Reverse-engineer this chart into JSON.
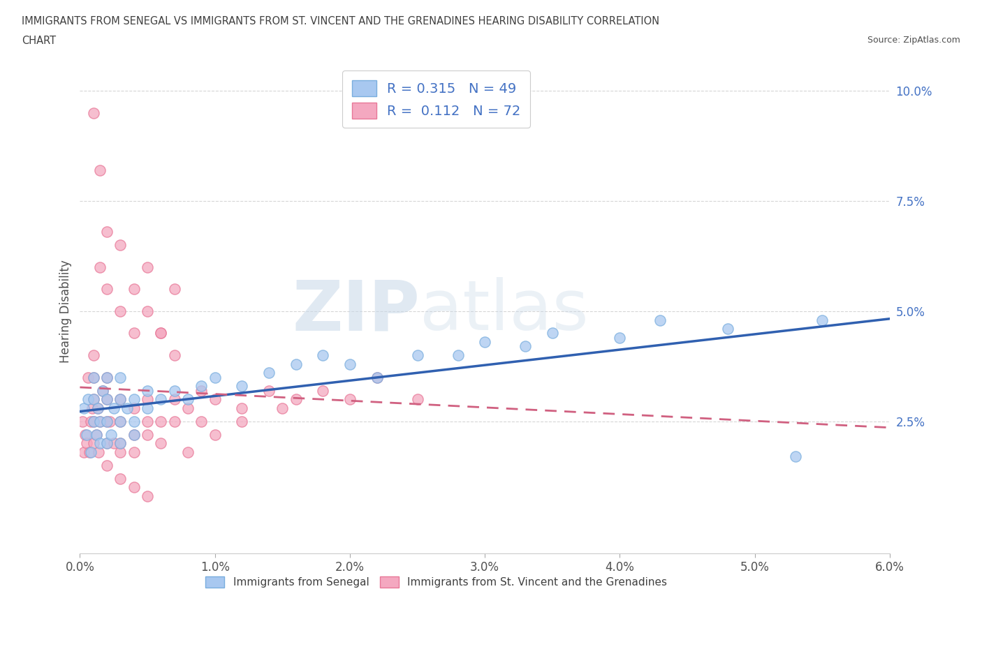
{
  "title_line1": "IMMIGRANTS FROM SENEGAL VS IMMIGRANTS FROM ST. VINCENT AND THE GRENADINES HEARING DISABILITY CORRELATION",
  "title_line2": "CHART",
  "source": "Source: ZipAtlas.com",
  "ylabel": "Hearing Disability",
  "xlim": [
    0.0,
    0.06
  ],
  "ylim": [
    -0.005,
    0.105
  ],
  "senegal_R": 0.315,
  "senegal_N": 49,
  "stvincent_R": 0.112,
  "stvincent_N": 72,
  "senegal_color": "#a8c8f0",
  "senegal_edge_color": "#7aaede",
  "stvincent_color": "#f4a8c0",
  "stvincent_edge_color": "#e87898",
  "senegal_line_color": "#3060b0",
  "stvincent_line_color": "#d06080",
  "watermark_zip": "ZIP",
  "watermark_atlas": "atlas",
  "background_color": "#ffffff",
  "grid_color": "#cccccc",
  "title_color": "#404040",
  "ytick_color": "#4472c4",
  "legend_text_color": "#4472c4",
  "bottom_legend_color": "#404040",
  "senegal_x": [
    0.0003,
    0.0005,
    0.0006,
    0.0008,
    0.001,
    0.001,
    0.001,
    0.0012,
    0.0013,
    0.0015,
    0.0015,
    0.0017,
    0.002,
    0.002,
    0.002,
    0.002,
    0.0023,
    0.0025,
    0.003,
    0.003,
    0.003,
    0.003,
    0.0035,
    0.004,
    0.004,
    0.004,
    0.005,
    0.005,
    0.006,
    0.007,
    0.008,
    0.009,
    0.01,
    0.012,
    0.014,
    0.016,
    0.018,
    0.02,
    0.022,
    0.025,
    0.028,
    0.03,
    0.033,
    0.035,
    0.04,
    0.043,
    0.048,
    0.053,
    0.055
  ],
  "senegal_y": [
    0.028,
    0.022,
    0.03,
    0.018,
    0.025,
    0.03,
    0.035,
    0.022,
    0.028,
    0.02,
    0.025,
    0.032,
    0.02,
    0.025,
    0.03,
    0.035,
    0.022,
    0.028,
    0.02,
    0.025,
    0.03,
    0.035,
    0.028,
    0.022,
    0.03,
    0.025,
    0.032,
    0.028,
    0.03,
    0.032,
    0.03,
    0.033,
    0.035,
    0.033,
    0.036,
    0.038,
    0.04,
    0.038,
    0.035,
    0.04,
    0.04,
    0.043,
    0.042,
    0.045,
    0.044,
    0.048,
    0.046,
    0.017,
    0.048
  ],
  "stvincent_x": [
    0.0002,
    0.0003,
    0.0004,
    0.0005,
    0.0006,
    0.0007,
    0.0008,
    0.0009,
    0.001,
    0.001,
    0.001,
    0.001,
    0.001,
    0.0012,
    0.0013,
    0.0014,
    0.0015,
    0.0015,
    0.0017,
    0.002,
    0.002,
    0.002,
    0.002,
    0.002,
    0.0022,
    0.0025,
    0.003,
    0.003,
    0.003,
    0.003,
    0.004,
    0.004,
    0.004,
    0.005,
    0.005,
    0.005,
    0.006,
    0.006,
    0.007,
    0.007,
    0.008,
    0.009,
    0.01,
    0.012,
    0.014,
    0.016,
    0.018,
    0.02,
    0.022,
    0.025,
    0.003,
    0.004,
    0.005,
    0.006,
    0.007,
    0.008,
    0.009,
    0.01,
    0.012,
    0.015,
    0.001,
    0.0015,
    0.002,
    0.003,
    0.004,
    0.005,
    0.006,
    0.007,
    0.002,
    0.003,
    0.004,
    0.005
  ],
  "stvincent_y": [
    0.025,
    0.018,
    0.022,
    0.02,
    0.035,
    0.018,
    0.025,
    0.028,
    0.02,
    0.025,
    0.03,
    0.035,
    0.04,
    0.022,
    0.028,
    0.018,
    0.025,
    0.06,
    0.032,
    0.02,
    0.025,
    0.03,
    0.035,
    0.055,
    0.025,
    0.02,
    0.018,
    0.025,
    0.03,
    0.05,
    0.022,
    0.028,
    0.045,
    0.025,
    0.03,
    0.06,
    0.025,
    0.045,
    0.03,
    0.055,
    0.028,
    0.032,
    0.03,
    0.028,
    0.032,
    0.03,
    0.032,
    0.03,
    0.035,
    0.03,
    0.02,
    0.018,
    0.022,
    0.02,
    0.025,
    0.018,
    0.025,
    0.022,
    0.025,
    0.028,
    0.095,
    0.082,
    0.068,
    0.065,
    0.055,
    0.05,
    0.045,
    0.04,
    0.015,
    0.012,
    0.01,
    0.008
  ]
}
